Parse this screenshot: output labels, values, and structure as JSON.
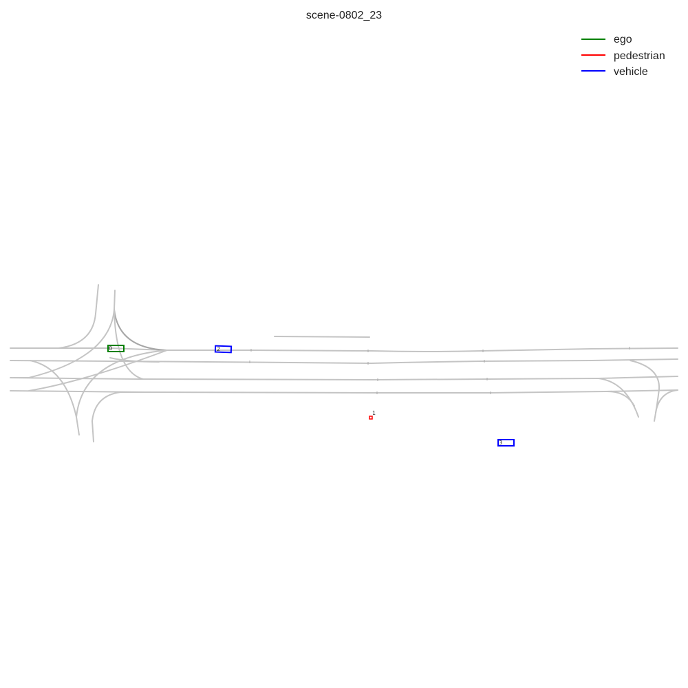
{
  "title": "scene-0802_23",
  "legend": [
    {
      "label": "ego",
      "color": "#008000"
    },
    {
      "label": "pedestrian",
      "color": "#ff0000"
    },
    {
      "label": "vehicle",
      "color": "#0000ff"
    }
  ],
  "agents": [
    {
      "id": "0",
      "type": "ego"
    },
    {
      "id": "1",
      "type": "pedestrian"
    },
    {
      "id": "2",
      "type": "vehicle"
    },
    {
      "id": "3",
      "type": "vehicle"
    }
  ]
}
